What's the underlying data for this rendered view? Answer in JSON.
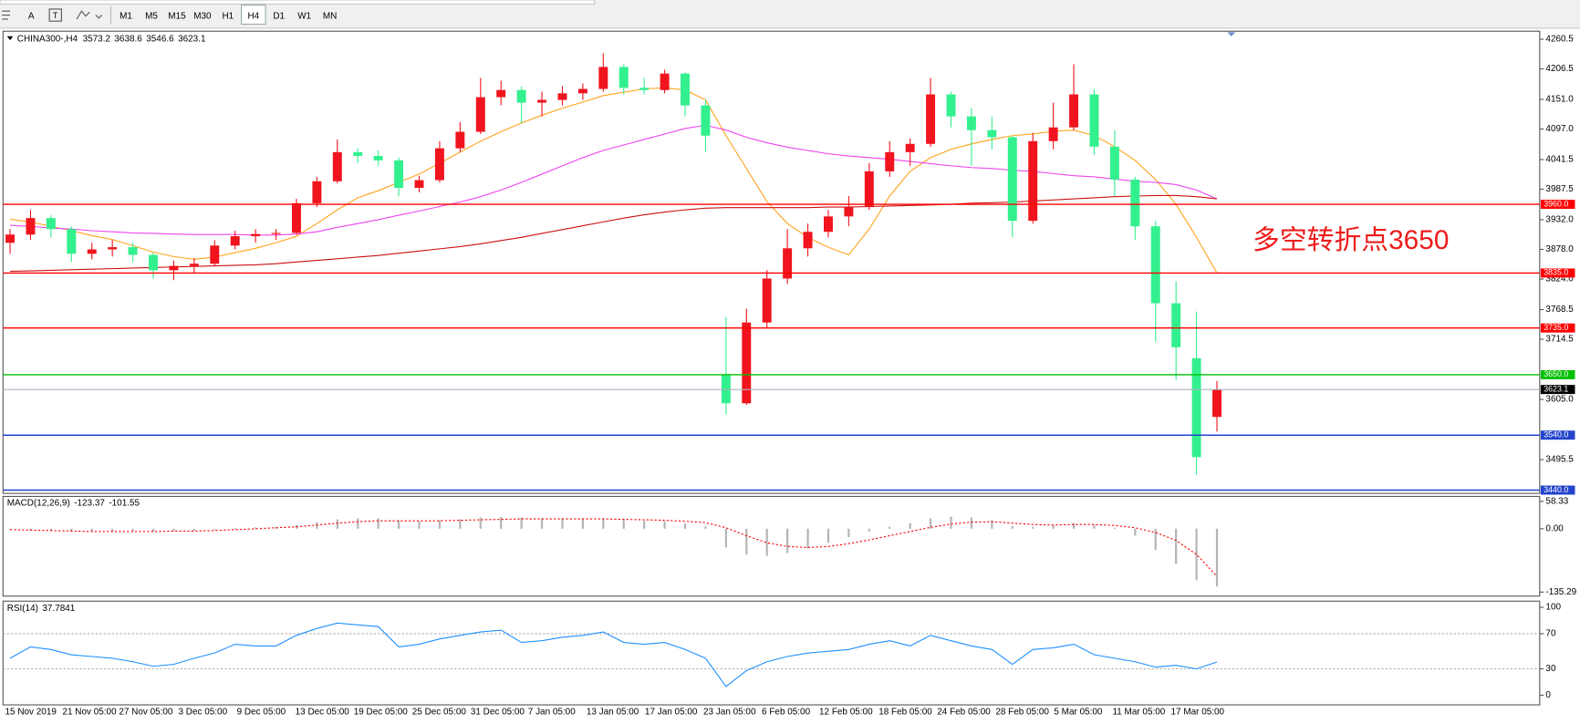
{
  "toolbar": {
    "text_tool": "A",
    "timeframes": [
      "M1",
      "M5",
      "M15",
      "M30",
      "H1",
      "H4",
      "D1",
      "W1",
      "MN"
    ],
    "selected": "H4"
  },
  "chart_data": [
    {
      "type": "candlestick",
      "symbol": "CHINA300-,H4",
      "open": [
        3890,
        3905,
        3935,
        3915,
        3870,
        3878,
        3882,
        3868,
        3840,
        3848,
        3852,
        3885,
        3902,
        3906,
        3908,
        3962,
        4002,
        4055,
        4048,
        4040,
        3990,
        4004,
        4062,
        4092,
        4155,
        4168,
        4145,
        4150,
        4162,
        4170,
        4210,
        4172,
        4168,
        4198,
        4140,
        3650,
        3598,
        3745,
        3825,
        3880,
        3910,
        3938,
        3955,
        4020,
        4055,
        4070,
        4160,
        4120,
        4095,
        4082,
        3930,
        4075,
        4100,
        4160,
        4065,
        4005,
        3920,
        3780,
        3680,
        3573.2
      ],
      "high": [
        3915,
        3950,
        3940,
        3920,
        3890,
        3895,
        3890,
        3872,
        3858,
        3862,
        3895,
        3912,
        3915,
        3915,
        3970,
        4010,
        4078,
        4062,
        4058,
        4045,
        4012,
        4075,
        4110,
        4190,
        4185,
        4175,
        4165,
        4175,
        4180,
        4235,
        4215,
        4190,
        4205,
        4200,
        4150,
        3755,
        3770,
        3840,
        3915,
        3925,
        3950,
        3975,
        4035,
        4075,
        4080,
        4190,
        4165,
        4135,
        4120,
        4085,
        4090,
        4145,
        4215,
        4170,
        4095,
        4010,
        3930,
        3820,
        3765,
        3638.6
      ],
      "low": [
        3870,
        3895,
        3900,
        3855,
        3860,
        3865,
        3855,
        3825,
        3822,
        3835,
        3848,
        3878,
        3890,
        3895,
        3905,
        3955,
        3998,
        4035,
        4030,
        3975,
        3982,
        4000,
        4055,
        4088,
        4140,
        4108,
        4120,
        4140,
        4150,
        4165,
        4160,
        4160,
        4162,
        4120,
        4055,
        3578,
        3595,
        3735,
        3815,
        3865,
        3900,
        3920,
        3950,
        4010,
        4030,
        4065,
        4100,
        4030,
        4060,
        3900,
        3925,
        4060,
        4095,
        4050,
        3975,
        3895,
        3710,
        3640,
        3468,
        3546.6
      ],
      "close": [
        3905,
        3935,
        3915,
        3870,
        3878,
        3882,
        3868,
        3840,
        3848,
        3852,
        3885,
        3902,
        3906,
        3908,
        3962,
        4002,
        4055,
        4048,
        4040,
        3990,
        4004,
        4062,
        4092,
        4155,
        4168,
        4145,
        4150,
        4162,
        4170,
        4210,
        4172,
        4168,
        4198,
        4140,
        4085,
        3598,
        3745,
        3825,
        3880,
        3910,
        3938,
        3955,
        4020,
        4055,
        4070,
        4160,
        4120,
        4095,
        4082,
        3930,
        4075,
        4100,
        4160,
        4065,
        4005,
        3920,
        3780,
        3700,
        3500,
        3623.1
      ],
      "up_color": "#f0141e",
      "down_color": "#33f08e",
      "ylim": [
        3434,
        4275
      ],
      "yticks": [
        4260.5,
        4206.5,
        {
          "value": 4151,
          "label": "4151.0"
        },
        {
          "value": 4097,
          "label": "4097.0"
        },
        4041.5,
        3987.5,
        {
          "value": 3932,
          "label": "3932.0"
        },
        {
          "value": 3878,
          "label": "3878.0"
        },
        {
          "value": 3824,
          "label": "3824.0"
        },
        3768.5,
        3714.5,
        {
          "value": 3605,
          "label": "3605.0"
        },
        3495.5
      ],
      "moving_averages": [
        {
          "color": "#ffa31a",
          "values": [
            3933,
            3928,
            3920,
            3912,
            3903,
            3896,
            3885,
            3873,
            3865,
            3860,
            3864,
            3872,
            3880,
            3890,
            3902,
            3925,
            3950,
            3972,
            3985,
            4000,
            4015,
            4035,
            4055,
            4075,
            4092,
            4108,
            4122,
            4135,
            4146,
            4158,
            4164,
            4170,
            4172,
            4168,
            4150,
            4085,
            4025,
            3965,
            3925,
            3900,
            3882,
            3868,
            3915,
            3975,
            4020,
            4045,
            4060,
            4070,
            4078,
            4085,
            4088,
            4093,
            4095,
            4085,
            4065,
            4040,
            4005,
            3960,
            3900,
            3835
          ]
        },
        {
          "color": "#ee44ee",
          "values": [
            3922,
            3920,
            3917,
            3915,
            3912,
            3910,
            3908,
            3907,
            3906,
            3905,
            3905,
            3905,
            3904,
            3904,
            3906,
            3910,
            3918,
            3925,
            3932,
            3940,
            3948,
            3956,
            3964,
            3974,
            3986,
            4000,
            4015,
            4030,
            4045,
            4058,
            4068,
            4078,
            4088,
            4098,
            4104,
            4095,
            4082,
            4072,
            4064,
            4058,
            4052,
            4048,
            4045,
            4042,
            4038,
            4034,
            4030,
            4027,
            4025,
            4022,
            4020,
            4016,
            4012,
            4010,
            4006,
            4002,
            4000,
            3996,
            3986,
            3970
          ]
        },
        {
          "color": "#cc1111",
          "values": [
            3838,
            3839,
            3840,
            3841,
            3842,
            3843,
            3844,
            3845,
            3846,
            3847,
            3848,
            3849,
            3850,
            3852,
            3855,
            3858,
            3861,
            3864,
            3867,
            3871,
            3875,
            3879,
            3883,
            3888,
            3894,
            3900,
            3907,
            3914,
            3921,
            3928,
            3935,
            3941,
            3946,
            3950,
            3953,
            3954,
            3954,
            3954,
            3954,
            3954,
            3955,
            3955,
            3956,
            3957,
            3958,
            3959,
            3960,
            3962,
            3963,
            3964,
            3966,
            3968,
            3970,
            3972,
            3974,
            3975,
            3976,
            3976,
            3974,
            3970
          ]
        }
      ],
      "levels": [
        {
          "value": 3960,
          "label": "3960.0",
          "color": "#ff0000"
        },
        {
          "value": 3835,
          "label": "3835.0",
          "color": "#ff0000"
        },
        {
          "value": 3735,
          "label": "3735.0",
          "color": "#ff0000"
        },
        {
          "value": 3650,
          "label": "3650.0",
          "color": "#00c000"
        },
        {
          "value": 3540,
          "label": "3540.0",
          "color": "#2244cc"
        },
        {
          "value": 3440,
          "label": "3440.0",
          "color": "#2244cc"
        }
      ],
      "annotation": "多空转折点3650",
      "x_labels": [
        "15 Nov 2019",
        "21 Nov 05:00",
        "27 Nov 05:00",
        "3 Dec 05:00",
        "9 Dec 05:00",
        "13 Dec 05:00",
        "19 Dec 05:00",
        "25 Dec 05:00",
        "31 Dec 05:00",
        "7 Jan 05:00",
        "13 Jan 05:00",
        "17 Jan 05:00",
        "23 Jan 05:00",
        "6 Feb 05:00",
        "12 Feb 05:00",
        "18 Feb 05:00",
        "24 Feb 05:00",
        "28 Feb 05:00",
        "5 Mar 05:00",
        "11 Mar 05:00",
        "17 Mar 05:00"
      ]
    },
    {
      "type": "macd",
      "label": "MACD(12,26,9)",
      "histogram": [
        -2,
        -3,
        -5,
        -6,
        -7,
        -6,
        -5,
        -6,
        -5,
        -4,
        -2,
        2,
        3,
        4,
        8,
        14,
        20,
        22,
        22,
        18,
        16,
        18,
        20,
        24,
        25,
        24,
        22,
        22,
        21,
        22,
        20,
        17,
        16,
        12,
        5,
        -40,
        -55,
        -58,
        -52,
        -42,
        -30,
        -18,
        -6,
        4,
        12,
        22,
        26,
        24,
        18,
        6,
        4,
        8,
        12,
        8,
        2,
        -15,
        -45,
        -75,
        -110,
        -123.37
      ],
      "signal": [
        -2,
        -3,
        -4,
        -5,
        -6,
        -6,
        -6,
        -6,
        -5,
        -5,
        -4,
        -2,
        0,
        2,
        4,
        8,
        12,
        15,
        17,
        17,
        17,
        17,
        18,
        19,
        20,
        21,
        21,
        21,
        21,
        21,
        20,
        19,
        18,
        16,
        13,
        2,
        -15,
        -30,
        -38,
        -40,
        -38,
        -32,
        -24,
        -15,
        -6,
        3,
        10,
        14,
        15,
        12,
        9,
        8,
        9,
        9,
        7,
        2,
        -8,
        -25,
        -55,
        -101.55
      ],
      "histogram_color": "#b4b4b4",
      "signal_color": "#ff0000",
      "ylim": [
        -144,
        69
      ],
      "yticks": [
        58.33,
        {
          "value": 0,
          "label": "0.00"
        },
        -135.29
      ]
    },
    {
      "type": "rsi",
      "label": "RSI(14)",
      "values": [
        42,
        55,
        52,
        46,
        44,
        42,
        38,
        33,
        35,
        42,
        48,
        58,
        56,
        56,
        68,
        76,
        82,
        80,
        78,
        55,
        58,
        64,
        68,
        72,
        74,
        60,
        62,
        66,
        68,
        72,
        60,
        58,
        60,
        52,
        42,
        10,
        28,
        38,
        44,
        48,
        50,
        52,
        58,
        62,
        56,
        68,
        62,
        56,
        52,
        35,
        52,
        54,
        58,
        46,
        42,
        38,
        32,
        34,
        30,
        37.7841
      ],
      "color": "#1e90ff",
      "ylim": [
        -11,
        107
      ],
      "yticks": [
        100,
        70,
        30,
        0
      ]
    }
  ]
}
